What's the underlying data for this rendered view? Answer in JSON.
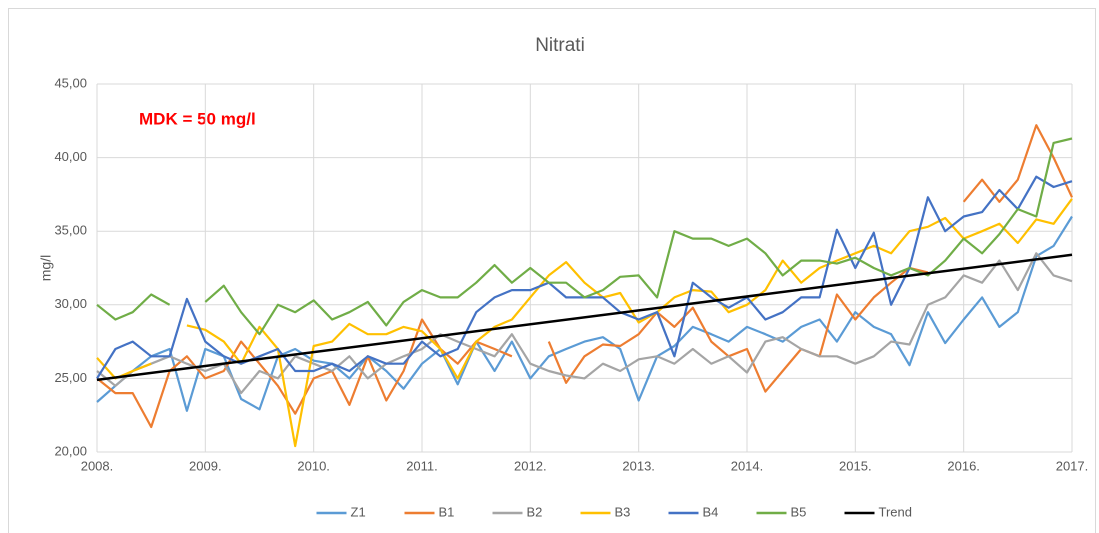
{
  "chart_data": {
    "type": "line",
    "title": "Nitrati",
    "y_label": "mg/l",
    "annotation": "MDK = 50 mg/l",
    "grid": true,
    "legend": "bottom",
    "x": [
      2008,
      2008.17,
      2008.33,
      2008.5,
      2008.67,
      2008.83,
      2009,
      2009.17,
      2009.33,
      2009.5,
      2009.67,
      2009.83,
      2010,
      2010.17,
      2010.33,
      2010.5,
      2010.67,
      2010.83,
      2011,
      2011.17,
      2011.33,
      2011.5,
      2011.67,
      2011.83,
      2012,
      2012.17,
      2012.33,
      2012.5,
      2012.67,
      2012.83,
      2013,
      2013.17,
      2013.33,
      2013.5,
      2013.67,
      2013.83,
      2014,
      2014.17,
      2014.33,
      2014.5,
      2014.67,
      2014.83,
      2015,
      2015.17,
      2015.33,
      2015.5,
      2015.67,
      2015.83,
      2016,
      2016.17,
      2016.33,
      2016.5,
      2016.67,
      2016.83,
      2017
    ],
    "xlim": [
      2008,
      2017
    ],
    "xticks": [
      {
        "value": 2008,
        "label": "2008."
      },
      {
        "value": 2009,
        "label": "2009."
      },
      {
        "value": 2010,
        "label": "2010."
      },
      {
        "value": 2011,
        "label": "2011."
      },
      {
        "value": 2012,
        "label": "2012."
      },
      {
        "value": 2013,
        "label": "2013."
      },
      {
        "value": 2014,
        "label": "2014."
      },
      {
        "value": 2015,
        "label": "2015."
      },
      {
        "value": 2016,
        "label": "2016."
      },
      {
        "value": 2017,
        "label": "2017."
      }
    ],
    "ylim": [
      20,
      45
    ],
    "yticks": [
      {
        "value": 20,
        "label": "20,00"
      },
      {
        "value": 25,
        "label": "25,00"
      },
      {
        "value": 30,
        "label": "30,00"
      },
      {
        "value": 35,
        "label": "35,00"
      },
      {
        "value": 40,
        "label": "40,00"
      },
      {
        "value": 45,
        "label": "45,00"
      }
    ],
    "series": [
      {
        "name": "Z1",
        "color": "#5b9bd5",
        "values": [
          23.4,
          24.5,
          25.5,
          26.5,
          27.0,
          22.8,
          27.0,
          26.5,
          23.6,
          22.9,
          26.5,
          27.0,
          26.2,
          26.0,
          25.0,
          26.5,
          25.5,
          24.3,
          26.0,
          27.0,
          24.6,
          27.5,
          25.5,
          27.5,
          25.0,
          26.5,
          27.0,
          27.5,
          27.8,
          27.0,
          23.5,
          26.5,
          27.2,
          28.5,
          28.0,
          27.5,
          28.5,
          28.0,
          27.5,
          28.5,
          29.0,
          27.5,
          29.5,
          28.5,
          28.0,
          25.9,
          29.5,
          27.4,
          29.0,
          30.5,
          28.5,
          29.5,
          33.3,
          34.0,
          36.0
        ]
      },
      {
        "name": "B1",
        "color": "#ed7d31",
        "values": [
          25.0,
          24.0,
          24.0,
          21.7,
          25.5,
          26.5,
          25.0,
          25.5,
          27.5,
          26.0,
          24.5,
          22.6,
          25.0,
          25.5,
          23.2,
          26.5,
          23.5,
          25.5,
          29.0,
          27.0,
          26.0,
          27.5,
          27.0,
          26.5,
          null,
          27.5,
          24.7,
          26.5,
          27.3,
          27.2,
          28.0,
          29.5,
          28.5,
          29.8,
          27.5,
          26.5,
          27.0,
          24.1,
          25.5,
          27.0,
          26.5,
          30.7,
          29.0,
          30.5,
          31.5,
          32.5,
          32.2,
          null,
          37.0,
          38.5,
          37.0,
          38.5,
          42.2,
          40.0,
          37.3
        ]
      },
      {
        "name": "B2",
        "color": "#a5a5a5",
        "values": [
          25.5,
          24.5,
          25.5,
          26.0,
          26.5,
          26.0,
          25.5,
          26.0,
          24.0,
          25.5,
          25.0,
          26.5,
          26.0,
          25.5,
          26.5,
          25.0,
          26.0,
          26.5,
          27.0,
          28.0,
          27.5,
          27.0,
          26.5,
          28.0,
          26.0,
          25.5,
          25.2,
          25.0,
          26.0,
          25.5,
          26.3,
          26.5,
          26.0,
          27.0,
          26.0,
          26.5,
          25.4,
          27.5,
          27.8,
          27.0,
          26.5,
          26.5,
          26.0,
          26.5,
          27.5,
          27.3,
          30.0,
          30.5,
          32.0,
          31.5,
          33.0,
          31.0,
          33.5,
          32.0,
          31.6
        ]
      },
      {
        "name": "B3",
        "color": "#ffc000",
        "values": [
          26.4,
          25.0,
          25.5,
          26.0,
          null,
          28.6,
          28.3,
          27.5,
          26.0,
          28.5,
          27.0,
          20.4,
          27.2,
          27.5,
          28.7,
          28.0,
          28.0,
          28.5,
          28.2,
          27.0,
          25.0,
          27.5,
          28.5,
          29.0,
          30.5,
          32.0,
          32.9,
          31.5,
          30.5,
          30.8,
          28.8,
          29.5,
          30.5,
          31.0,
          30.9,
          29.5,
          30.0,
          31.0,
          33.0,
          31.5,
          32.5,
          33.0,
          33.5,
          34.0,
          33.5,
          35.0,
          35.3,
          35.9,
          34.5,
          35.0,
          35.5,
          34.2,
          35.8,
          35.5,
          37.2
        ]
      },
      {
        "name": "B4",
        "color": "#4472c4",
        "values": [
          25.0,
          27.0,
          27.5,
          26.5,
          26.5,
          30.4,
          27.5,
          26.5,
          26.0,
          26.5,
          27.0,
          25.5,
          25.5,
          26.0,
          25.5,
          26.5,
          26.0,
          26.0,
          27.5,
          26.5,
          27.0,
          29.5,
          30.5,
          31.0,
          31.0,
          31.5,
          30.5,
          30.5,
          30.5,
          29.5,
          29.0,
          29.5,
          26.5,
          31.5,
          30.5,
          29.8,
          30.5,
          29.0,
          29.5,
          30.5,
          30.5,
          35.1,
          32.5,
          34.9,
          30.0,
          32.5,
          37.3,
          35.0,
          36.0,
          36.3,
          37.8,
          36.5,
          38.7,
          38.0,
          38.4
        ]
      },
      {
        "name": "B5",
        "color": "#70ad47",
        "values": [
          30.0,
          29.0,
          29.5,
          30.7,
          30.0,
          null,
          30.2,
          31.3,
          29.5,
          28.0,
          30.0,
          29.5,
          30.3,
          29.0,
          29.5,
          30.2,
          28.6,
          30.2,
          31.0,
          30.5,
          30.5,
          31.5,
          32.7,
          31.5,
          32.5,
          31.5,
          31.5,
          30.5,
          31.0,
          31.9,
          32.0,
          30.5,
          35.0,
          34.5,
          34.5,
          34.0,
          34.5,
          33.5,
          32.0,
          33.0,
          33.0,
          32.8,
          33.2,
          32.5,
          32.0,
          32.5,
          32.0,
          33.0,
          34.5,
          33.5,
          34.8,
          36.5,
          36.0,
          41.0,
          41.3
        ]
      },
      {
        "name": "Trend",
        "color": "#000000",
        "x": [
          2008,
          2017
        ],
        "values": [
          24.9,
          33.4
        ]
      }
    ]
  }
}
